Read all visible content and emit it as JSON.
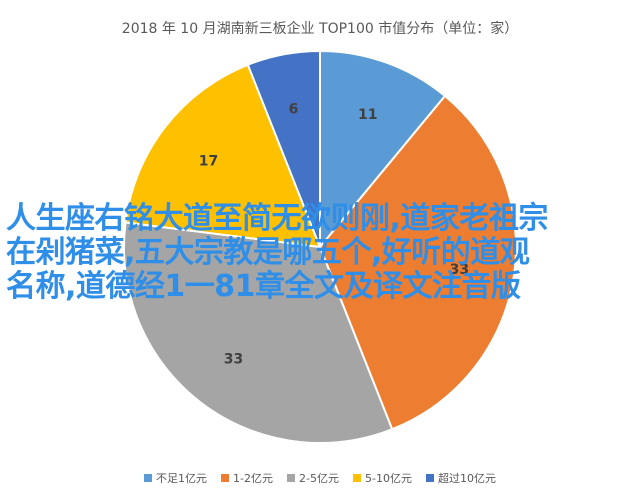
{
  "chart_data": {
    "type": "pie",
    "title": "2018 年 10 月湖南新三板企业 TOP100 市值分布（单位：家）",
    "categories": [
      "不足1亿元",
      "1-2亿元",
      "2-5亿元",
      "5-10亿元",
      "超过10亿元"
    ],
    "values": [
      11,
      33,
      33,
      17,
      6
    ],
    "colors": [
      "#5b9bd5",
      "#ed7d31",
      "#a5a5a5",
      "#ffc000",
      "#4472c4"
    ],
    "legend_position": "bottom"
  },
  "overlay": {
    "lines": [
      "人生座右铭大道至简无欲则刚,道家老祖宗",
      "在剁猪菜,五大宗教是哪五个,好听的道观",
      "名称,道德经1一81章全文及译文注音版"
    ],
    "color": "#2e8ee8"
  }
}
